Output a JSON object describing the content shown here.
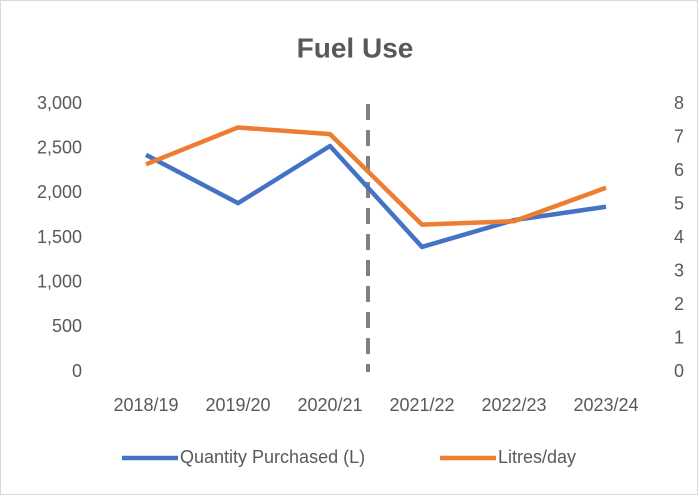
{
  "chart_data": {
    "type": "line",
    "title": "Fuel Use",
    "categories": [
      "2018/19",
      "2019/20",
      "2020/21",
      "2021/22",
      "2022/23",
      "2023/24"
    ],
    "series": [
      {
        "name": "Quantity Purchased (L)",
        "color": "#4472c4",
        "values": [
          2430,
          1890,
          2530,
          1400,
          1700,
          1850
        ]
      },
      {
        "name": "Litres/day",
        "color": "#ed7d31",
        "axis": "y2",
        "values": [
          6.2,
          7.3,
          7.1,
          4.4,
          4.5,
          5.5
        ]
      }
    ],
    "ylim": [
      0,
      3000
    ],
    "yticks": [
      0,
      500,
      {
        "value": 1000,
        "label": "1,000"
      },
      {
        "value": 1500,
        "label": "1,500"
      },
      {
        "value": 2000,
        "label": "2,000"
      },
      {
        "value": 2500,
        "label": "2,500"
      },
      {
        "value": 3000,
        "label": "3,000"
      }
    ],
    "y2lim": [
      0,
      8
    ],
    "y2ticks": [
      0,
      1,
      2,
      3,
      4,
      5,
      6,
      7,
      8
    ],
    "legend": "bottom"
  }
}
